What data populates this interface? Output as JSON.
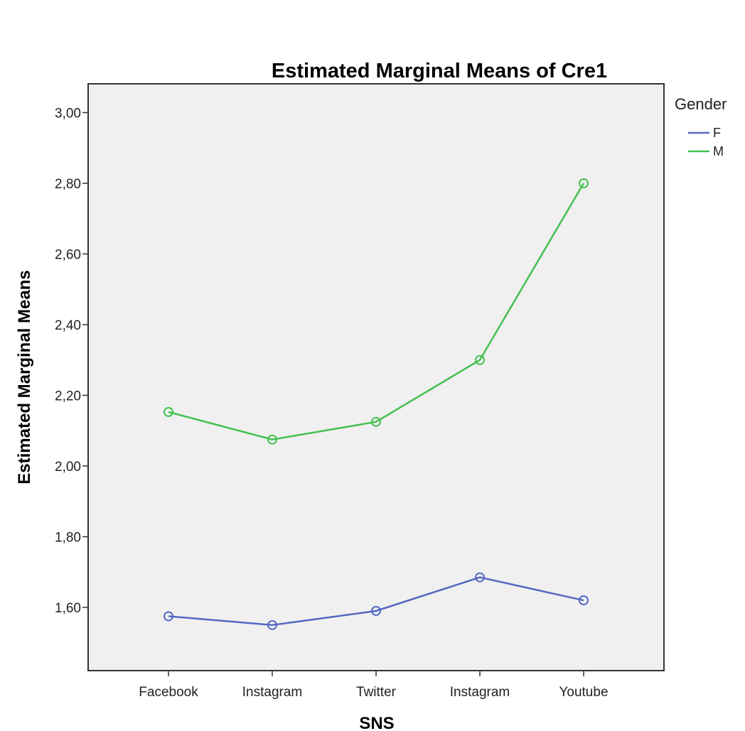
{
  "chart_data": {
    "type": "line",
    "title": "Estimated Marginal Means of Cre1",
    "xlabel": "SNS",
    "ylabel": "Estimated Marginal Means",
    "categories": [
      "Facebook",
      "Instagram",
      "Twitter",
      "Instagram",
      "Youtube"
    ],
    "y_ticks": [
      "1,60",
      "1,80",
      "2,00",
      "2,20",
      "2,40",
      "2,60",
      "2,80",
      "3,00"
    ],
    "ylim": [
      1.42,
      3.08
    ],
    "grid": false,
    "legend": {
      "title": "Gender",
      "placement": "right"
    },
    "series": [
      {
        "name": "F",
        "color": "#5468c2",
        "values": [
          1.575,
          1.55,
          1.59,
          1.685,
          1.62
        ]
      },
      {
        "name": "M",
        "color": "#45c050",
        "values": [
          2.153,
          2.075,
          2.125,
          2.3,
          2.8
        ]
      }
    ],
    "plot_background": "#f0f0f0",
    "marker": "open-circle"
  }
}
